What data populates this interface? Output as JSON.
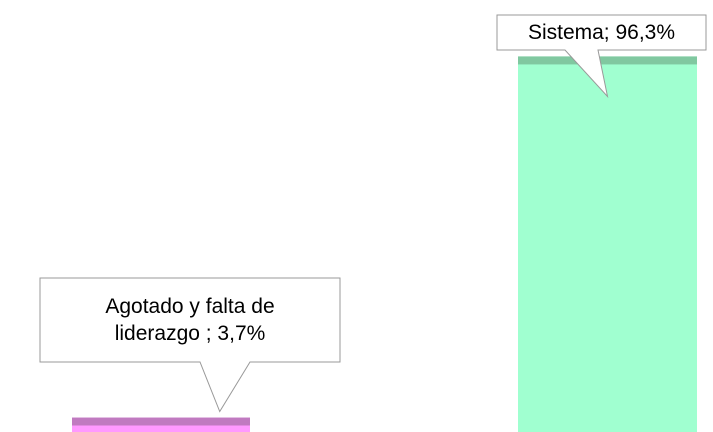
{
  "chart_data": {
    "type": "bar",
    "values": [
      3.7,
      96.3
    ],
    "value_labels": [
      "Agotado y falta de liderazgo ; 3,7%",
      "Sistema; 96,3%"
    ],
    "colors": [
      "#ff99ff",
      "#a0ffd0"
    ],
    "cap_colors": [
      "#c07ac0",
      "#80c8a0"
    ],
    "ylim": [
      0,
      100
    ]
  }
}
